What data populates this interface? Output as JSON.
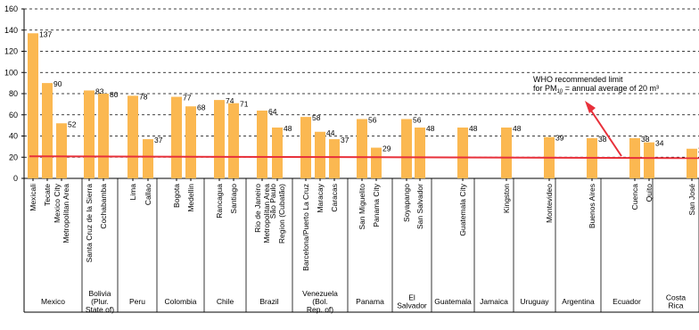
{
  "chart_data": {
    "type": "bar",
    "title": "",
    "xlabel": "",
    "ylabel": "",
    "ylim": [
      0,
      160
    ],
    "yticks": [
      0,
      20,
      40,
      60,
      80,
      100,
      120,
      140,
      160
    ],
    "grid": "horizontal dashed",
    "bar_color": "#fbb851",
    "reference_line": {
      "value": 20,
      "color": "#e8303a"
    },
    "annotation": {
      "line1": "WHO recommended limit",
      "line2_prefix": "for PM",
      "line2_sub": "10",
      "line2_suffix": " = annual average of 20 m³",
      "arrow_color": "#e8303a"
    },
    "bars": [
      {
        "city": "Mexicali",
        "value": 137
      },
      {
        "city": "Tecate",
        "value": 90
      },
      {
        "city": "Mexico City Metropolitan Area",
        "value": 52
      },
      {
        "city": "Santa Cruz de la Sierra",
        "value": 83
      },
      {
        "city": "Cochabamba",
        "value": 80
      },
      {
        "city": "Lima",
        "value": 78
      },
      {
        "city": "Callao",
        "value": 37
      },
      {
        "city": "Bogota",
        "value": 77
      },
      {
        "city": "Medellin",
        "value": 68
      },
      {
        "city": "Rancagua",
        "value": 74
      },
      {
        "city": "Santiago",
        "value": 71
      },
      {
        "city": "Rio de Janeiro Metropolitan Area",
        "value": 64
      },
      {
        "city": "São Paulo Region (Cubatão)",
        "value": 48
      },
      {
        "city": "Barcelona/Puerto La Cruz",
        "value": 58
      },
      {
        "city": "Maracay",
        "value": 44
      },
      {
        "city": "Caracas",
        "value": 37
      },
      {
        "city": "San Miguelito",
        "value": 56
      },
      {
        "city": "Panama City",
        "value": 29
      },
      {
        "city": "Soyapango",
        "value": 56
      },
      {
        "city": "San Salvador",
        "value": 48
      },
      {
        "city": "Guatemala City",
        "value": 48
      },
      {
        "city": "Kingston",
        "value": 48
      },
      {
        "city": "Montevideo",
        "value": 39
      },
      {
        "city": "Buenos Aires",
        "value": 38
      },
      {
        "city": "Cuenca",
        "value": 38
      },
      {
        "city": "Quito",
        "value": 34
      },
      {
        "city": "San José",
        "value": 28
      }
    ],
    "countries": [
      {
        "name": "Mexico",
        "bars": [
          0,
          1,
          2
        ]
      },
      {
        "name": "Bolivia (Plur. State of)",
        "bars": [
          3,
          4
        ]
      },
      {
        "name": "Peru",
        "bars": [
          5,
          6
        ]
      },
      {
        "name": "Colombia",
        "bars": [
          7,
          8
        ]
      },
      {
        "name": "Chile",
        "bars": [
          9,
          10
        ]
      },
      {
        "name": "Brazil",
        "bars": [
          11,
          12
        ]
      },
      {
        "name": "Venezuela (Bol. Rep. of)",
        "bars": [
          13,
          14,
          15
        ]
      },
      {
        "name": "Panama",
        "bars": [
          16,
          17
        ]
      },
      {
        "name": "El Salvador",
        "bars": [
          18,
          19
        ]
      },
      {
        "name": "Guatemala",
        "bars": [
          20
        ]
      },
      {
        "name": "Jamaica",
        "bars": [
          21
        ]
      },
      {
        "name": "Uruguay",
        "bars": [
          22
        ]
      },
      {
        "name": "Argentina",
        "bars": [
          23
        ]
      },
      {
        "name": "Ecuador",
        "bars": [
          24,
          25
        ]
      },
      {
        "name": "Costa Rica",
        "bars": [
          26
        ]
      }
    ]
  }
}
